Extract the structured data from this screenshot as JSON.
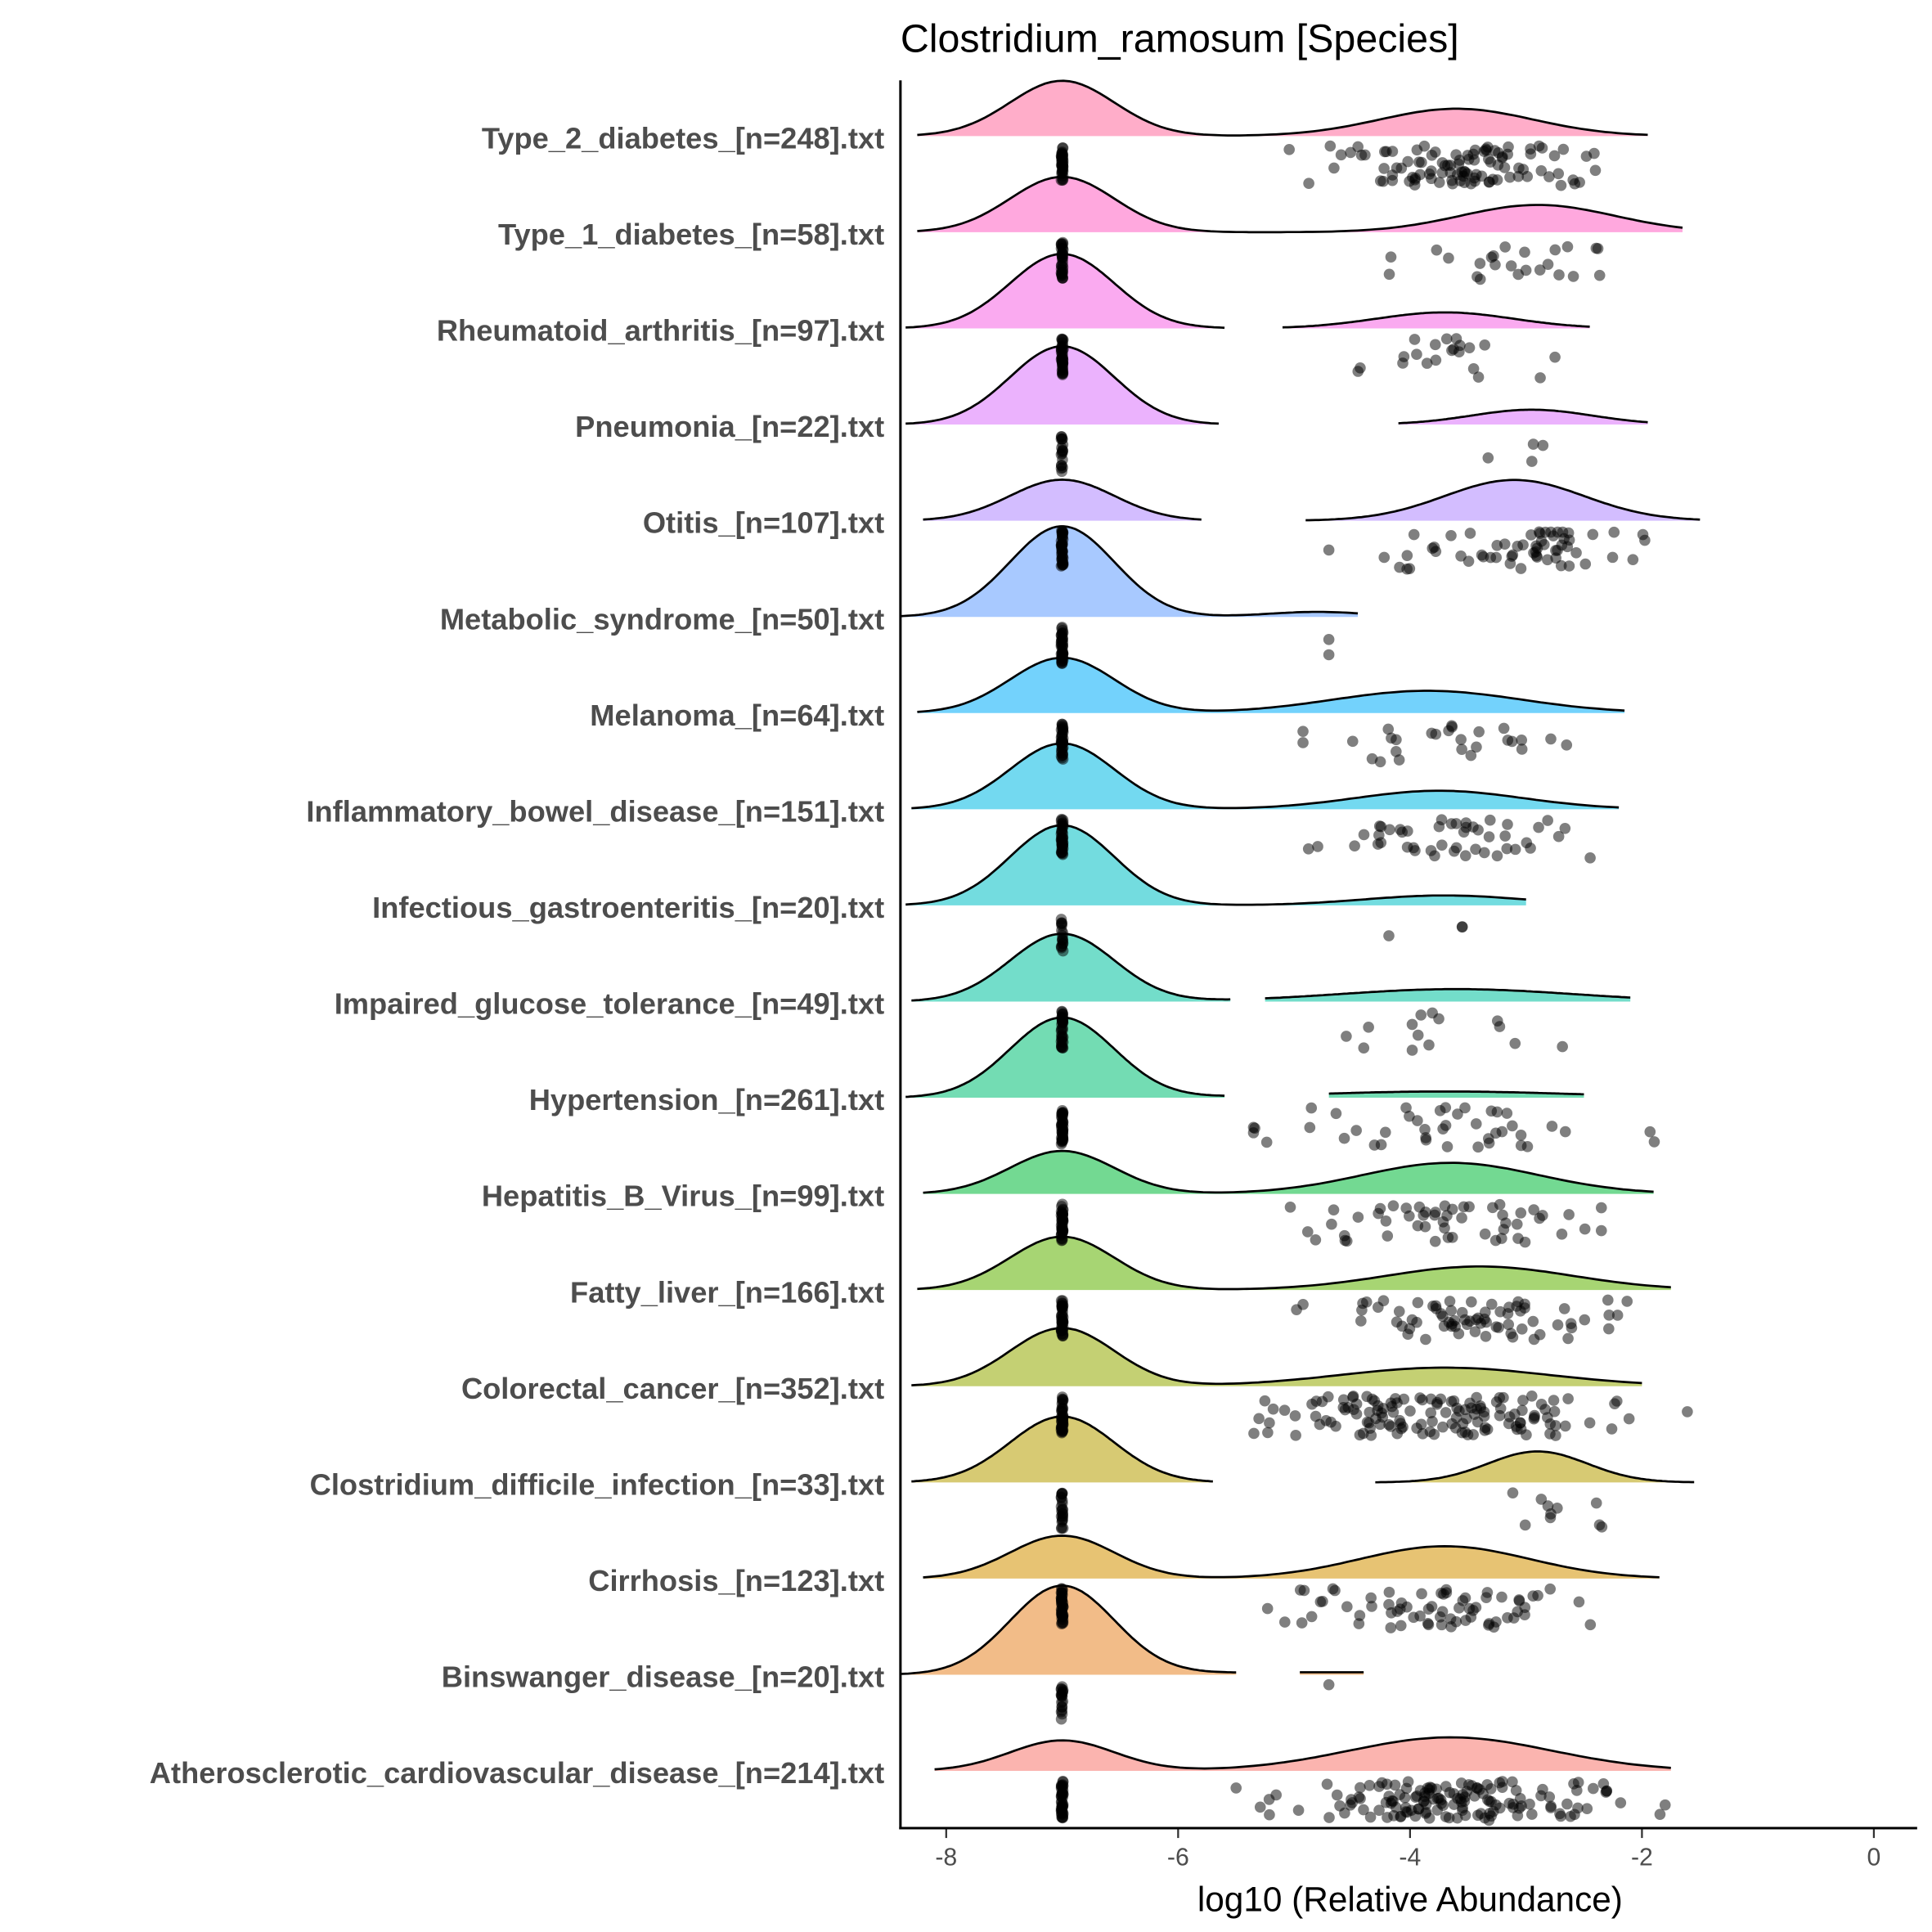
{
  "chart_data": {
    "type": "ridgeline-raincloud",
    "title": "Clostridium_ramosum [Species]",
    "xlabel": "log10 (Relative Abundance)",
    "ylabel": "",
    "xlim": [
      -8.4,
      0.37
    ],
    "xticks": [
      -8,
      -6,
      -4,
      -2,
      0
    ],
    "xtick_labels": [
      "-8",
      "-6",
      "-4",
      "-2",
      "0"
    ],
    "zero_value": -7,
    "grid": false,
    "legend": "none",
    "series": [
      {
        "name": "Type_2_diabetes_[n=248].txt",
        "n": 248,
        "zero_fraction": 0.58,
        "mean": -3.6,
        "sd": 0.66,
        "segments": [
          [
            -8.25,
            -1.95
          ]
        ],
        "points_range": [
          -5.4,
          -1.8
        ]
      },
      {
        "name": "Type_1_diabetes_[n=58].txt",
        "n": 58,
        "zero_fraction": 0.58,
        "mean": -2.9,
        "sd": 0.66,
        "segments": [
          [
            -8.25,
            -1.65
          ]
        ],
        "points_range": [
          -5.4,
          -2.0
        ]
      },
      {
        "name": "Rheumatoid_arthritis_[n=97].txt",
        "n": 97,
        "zero_fraction": 0.78,
        "mean": -3.7,
        "sd": 0.59,
        "segments": [
          [
            -8.35,
            -5.6
          ],
          [
            -5.1,
            -2.45
          ]
        ],
        "points_range": [
          -4.7,
          -2.75
        ]
      },
      {
        "name": "Pneumonia_[n=22].txt",
        "n": 22,
        "zero_fraction": 0.82,
        "mean": -2.95,
        "sd": 0.52,
        "segments": [
          [
            -8.35,
            -5.65
          ],
          [
            -4.1,
            -1.95
          ]
        ],
        "points_range": [
          -3.6,
          -2.55
        ]
      },
      {
        "name": "Otitis_[n=107].txt",
        "n": 107,
        "zero_fraction": 0.43,
        "mean": -3.1,
        "sd": 0.6,
        "segments": [
          [
            -8.2,
            -5.8
          ],
          [
            -4.9,
            -1.5
          ]
        ],
        "points_range": [
          -4.7,
          -1.65
        ]
      },
      {
        "name": "Metabolic_syndrome_[n=50].txt",
        "n": 50,
        "zero_fraction": 0.95,
        "mean": -4.8,
        "sd": 0.43,
        "segments": [
          [
            -8.4,
            -4.45
          ]
        ],
        "points_range": [
          -5.1,
          -4.7
        ]
      },
      {
        "name": "Melanoma_[n=64].txt",
        "n": 64,
        "zero_fraction": 0.58,
        "mean": -3.85,
        "sd": 0.81,
        "segments": [
          [
            -8.25,
            -2.15
          ]
        ],
        "points_range": [
          -5.5,
          -2.65
        ]
      },
      {
        "name": "Inflammatory_bowel_disease_[n=151].txt",
        "n": 151,
        "zero_fraction": 0.69,
        "mean": -3.75,
        "sd": 0.72,
        "segments": [
          [
            -8.3,
            -2.2
          ]
        ],
        "points_range": [
          -5.65,
          -2.3
        ]
      },
      {
        "name": "Infectious_gastroenteritis_[n=20].txt",
        "n": 20,
        "zero_fraction": 0.84,
        "mean": -3.7,
        "sd": 0.69,
        "segments": [
          [
            -8.35,
            -3.0
          ]
        ],
        "points_range": [
          -5.25,
          -3.55
        ]
      },
      {
        "name": "Impaired_glucose_tolerance_[n=49].txt",
        "n": 49,
        "zero_fraction": 0.71,
        "mean": -3.6,
        "sd": 1.0,
        "segments": [
          [
            -8.3,
            -5.55
          ],
          [
            -5.25,
            -2.1
          ]
        ],
        "points_range": [
          -4.85,
          -2.65
        ]
      },
      {
        "name": "Hypertension_[n=261].txt",
        "n": 261,
        "zero_fraction": 0.84,
        "mean": -3.7,
        "sd": 1.1,
        "segments": [
          [
            -8.35,
            -5.6
          ],
          [
            -4.7,
            -2.5
          ]
        ],
        "points_range": [
          -5.35,
          -1.65
        ]
      },
      {
        "name": "Hepatitis_B_Virus_[n=99].txt",
        "n": 99,
        "zero_fraction": 0.45,
        "mean": -3.65,
        "sd": 0.76,
        "segments": [
          [
            -8.2,
            -1.9
          ]
        ],
        "points_range": [
          -5.7,
          -2.35
        ]
      },
      {
        "name": "Fatty_liver_[n=166].txt",
        "n": 166,
        "zero_fraction": 0.56,
        "mean": -3.4,
        "sd": 0.8,
        "segments": [
          [
            -8.25,
            -1.75
          ]
        ],
        "points_range": [
          -5.35,
          -1.65
        ]
      },
      {
        "name": "Colorectal_cancer_[n=352].txt",
        "n": 352,
        "zero_fraction": 0.61,
        "mean": -3.7,
        "sd": 0.9,
        "segments": [
          [
            -8.3,
            -2.0
          ]
        ],
        "points_range": [
          -5.65,
          -1.3
        ]
      },
      {
        "name": "Clostridium_difficile_infection_[n=33].txt",
        "n": 33,
        "zero_fraction": 0.69,
        "mean": -2.9,
        "sd": 0.43,
        "segments": [
          [
            -8.3,
            -5.7
          ],
          [
            -4.3,
            -1.55
          ]
        ],
        "points_range": [
          -3.75,
          -2.15
        ]
      },
      {
        "name": "Cirrhosis_[n=123].txt",
        "n": 123,
        "zero_fraction": 0.45,
        "mean": -3.7,
        "sd": 0.73,
        "segments": [
          [
            -8.2,
            -1.85
          ]
        ],
        "points_range": [
          -5.7,
          -1.45
        ]
      },
      {
        "name": "Binswanger_disease_[n=20].txt",
        "n": 20,
        "zero_fraction": 0.93,
        "mean": -4.7,
        "sd": 1.2,
        "segments": [
          [
            -8.4,
            -5.5
          ],
          [
            -4.95,
            -4.4
          ]
        ],
        "points_range": [
          -4.7,
          -4.7
        ]
      },
      {
        "name": "Atherosclerotic_cardiovascular_disease_[n=214].txt",
        "n": 214,
        "zero_fraction": 0.32,
        "mean": -3.65,
        "sd": 0.87,
        "segments": [
          [
            -8.1,
            -1.75
          ]
        ],
        "points_range": [
          -5.5,
          -1.8
        ]
      }
    ]
  }
}
